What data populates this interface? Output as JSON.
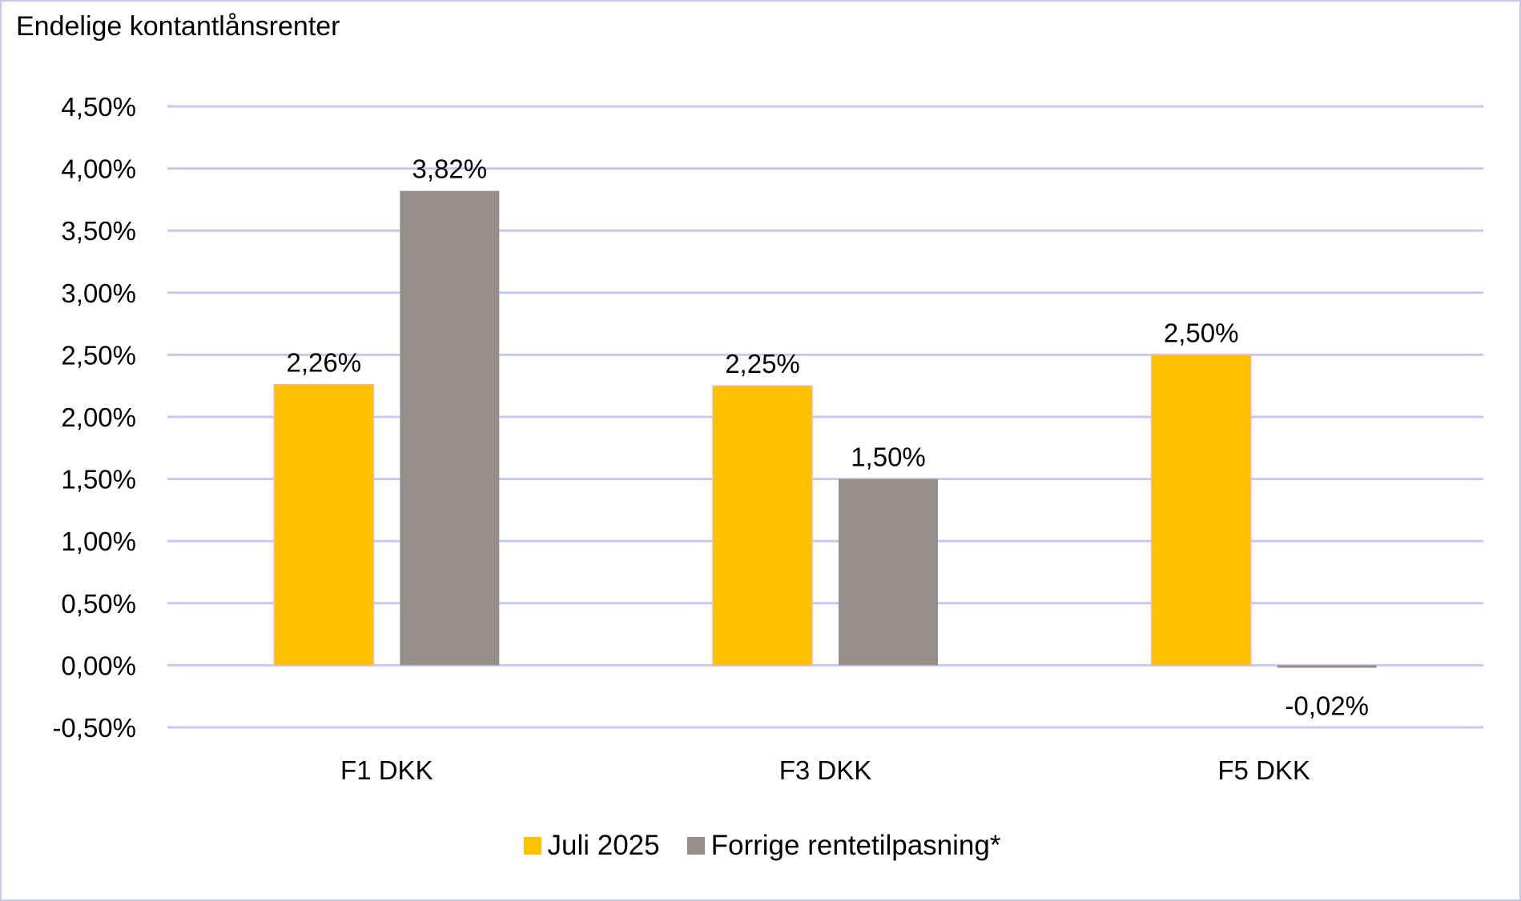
{
  "chart_data": {
    "type": "bar",
    "title": "Endelige kontantlånsrenter",
    "categories": [
      "F1 DKK",
      "F3 DKK",
      "F5 DKK"
    ],
    "series": [
      {
        "name": "Juli 2025",
        "color": "#FFC000",
        "values": [
          2.26,
          2.25,
          2.5
        ],
        "labels": [
          "2,26%",
          "2,25%",
          "2,50%"
        ]
      },
      {
        "name": "Forrige rentetilpasning*",
        "color": "#968F89",
        "values": [
          3.82,
          1.5,
          -0.02
        ],
        "labels": [
          "3,82%",
          "1,50%",
          "-0,02%"
        ]
      }
    ],
    "ylim": [
      -0.5,
      4.5
    ],
    "yticks": [
      4.5,
      4.0,
      3.5,
      3.0,
      2.5,
      2.0,
      1.5,
      1.0,
      0.5,
      0.0,
      -0.5
    ],
    "ytick_labels": [
      "4,50%",
      "4,00%",
      "3,50%",
      "3,00%",
      "2,50%",
      "2,00%",
      "1,50%",
      "1,00%",
      "0,50%",
      "0,00%",
      "-0,50%"
    ],
    "xlabel": "",
    "ylabel": "",
    "grid": true,
    "grid_color": "#C8C8F0",
    "legend_position": "bottom-center"
  }
}
